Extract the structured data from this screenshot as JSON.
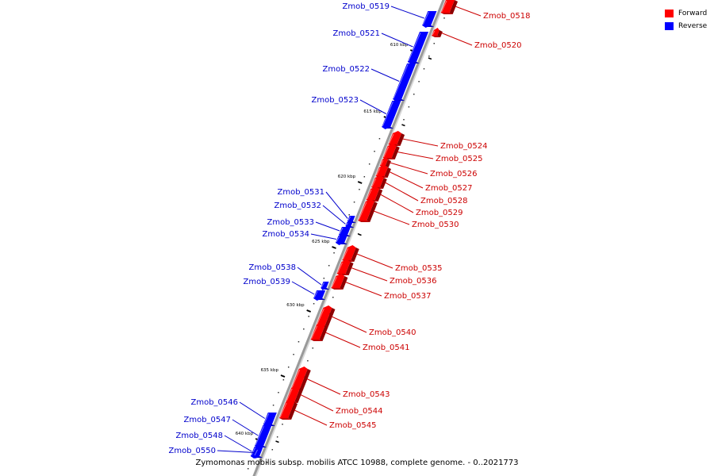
{
  "caption": "Zymomonas mobilis subsp. mobilis ATCC 10988, complete genome. - 0..2021773",
  "legend": [
    {
      "label": "Forward",
      "color": "#ff0000"
    },
    {
      "label": "Reverse",
      "color": "#0000ff"
    }
  ],
  "colors": {
    "forward": "#ff0000",
    "reverse": "#0000ff",
    "forward_label": "#cc0000",
    "reverse_label": "#0000cc",
    "backbone": "#9a9a9a"
  },
  "ticks": [
    {
      "kbp": 610,
      "label": "610 kbp"
    },
    {
      "kbp": 615,
      "label": "615 kbp"
    },
    {
      "kbp": 620,
      "label": "620 kbp"
    },
    {
      "kbp": 625,
      "label": "625 kbp"
    },
    {
      "kbp": 630,
      "label": "630 kbp"
    },
    {
      "kbp": 635,
      "label": "635 kbp"
    },
    {
      "kbp": 640,
      "label": "640 kbp"
    }
  ],
  "genes": [
    {
      "name": "Zmob_0518",
      "strand": "forward"
    },
    {
      "name": "Zmob_0519",
      "strand": "reverse"
    },
    {
      "name": "Zmob_0520",
      "strand": "forward"
    },
    {
      "name": "Zmob_0521",
      "strand": "reverse"
    },
    {
      "name": "Zmob_0522",
      "strand": "reverse"
    },
    {
      "name": "Zmob_0523",
      "strand": "reverse"
    },
    {
      "name": "Zmob_0524",
      "strand": "forward"
    },
    {
      "name": "Zmob_0525",
      "strand": "forward"
    },
    {
      "name": "Zmob_0526",
      "strand": "forward"
    },
    {
      "name": "Zmob_0527",
      "strand": "forward"
    },
    {
      "name": "Zmob_0528",
      "strand": "forward"
    },
    {
      "name": "Zmob_0529",
      "strand": "forward"
    },
    {
      "name": "Zmob_0530",
      "strand": "forward"
    },
    {
      "name": "Zmob_0531",
      "strand": "reverse"
    },
    {
      "name": "Zmob_0532",
      "strand": "reverse"
    },
    {
      "name": "Zmob_0533",
      "strand": "reverse"
    },
    {
      "name": "Zmob_0534",
      "strand": "reverse"
    },
    {
      "name": "Zmob_0535",
      "strand": "forward"
    },
    {
      "name": "Zmob_0536",
      "strand": "forward"
    },
    {
      "name": "Zmob_0537",
      "strand": "forward"
    },
    {
      "name": "Zmob_0538",
      "strand": "reverse"
    },
    {
      "name": "Zmob_0539",
      "strand": "reverse"
    },
    {
      "name": "Zmob_0540",
      "strand": "forward"
    },
    {
      "name": "Zmob_0541",
      "strand": "forward"
    },
    {
      "name": "Zmob_0543",
      "strand": "forward"
    },
    {
      "name": "Zmob_0544",
      "strand": "forward"
    },
    {
      "name": "Zmob_0545",
      "strand": "forward"
    },
    {
      "name": "Zmob_0546",
      "strand": "reverse"
    },
    {
      "name": "Zmob_0547",
      "strand": "reverse"
    },
    {
      "name": "Zmob_0548",
      "strand": "reverse"
    },
    {
      "name": "Zmob_0550",
      "strand": "reverse"
    }
  ]
}
